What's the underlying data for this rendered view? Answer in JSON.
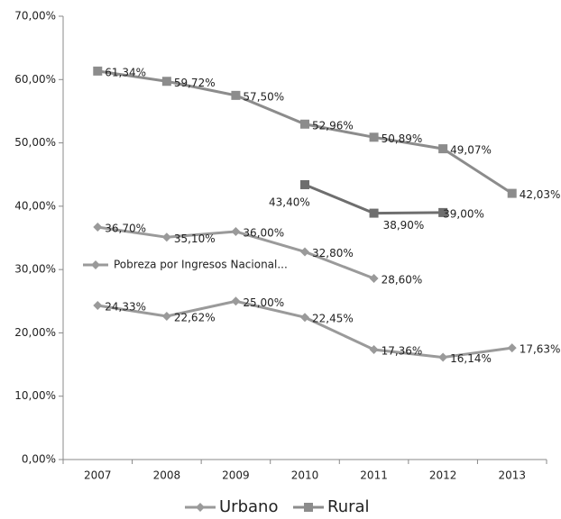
{
  "chart_data": {
    "type": "line",
    "categories": [
      "2007",
      "2008",
      "2009",
      "2010",
      "2011",
      "2012",
      "2013"
    ],
    "ylim": [
      0,
      70
    ],
    "yticks": [
      {
        "value": 0,
        "label": "0,00%"
      },
      {
        "value": 10,
        "label": "10,00%"
      },
      {
        "value": 20,
        "label": "20,00%"
      },
      {
        "value": 30,
        "label": "30,00%"
      },
      {
        "value": 40,
        "label": "40,00%"
      },
      {
        "value": 50,
        "label": "50,00%"
      },
      {
        "value": 60,
        "label": "60,00%"
      },
      {
        "value": 70,
        "label": "70,00%"
      }
    ],
    "series": [
      {
        "name": "Rural",
        "color": "#8c8c8c",
        "marker": "square",
        "values": [
          61.34,
          59.72,
          57.5,
          52.96,
          50.89,
          49.07,
          42.03
        ],
        "value_labels": [
          "61,34%",
          "59,72%",
          "57,50%",
          "52,96%",
          "50,89%",
          "49,07%",
          "42,03%"
        ]
      },
      {
        "color": "#6e6e6e",
        "marker": "square",
        "values": [
          null,
          null,
          null,
          43.4,
          38.9,
          39.0,
          null
        ],
        "value_labels": [
          null,
          null,
          null,
          "43,40%",
          "38,90%",
          "39,00%",
          null
        ]
      },
      {
        "name": "Pobreza por Ingresos Nacional...",
        "color": "#9a9a9a",
        "marker": "diamond",
        "values": [
          36.7,
          35.1,
          36.0,
          32.8,
          28.6,
          null,
          null
        ],
        "value_labels": [
          "36,70%",
          "35,10%",
          "36,00%",
          "32,80%",
          "28,60%",
          null,
          null
        ]
      },
      {
        "name": "Urbano",
        "color": "#9a9a9a",
        "marker": "diamond",
        "values": [
          24.33,
          22.62,
          25.0,
          22.45,
          17.36,
          16.14,
          17.63
        ],
        "value_labels": [
          "24,33%",
          "22,62%",
          "25,00%",
          "22,45%",
          "17,36%",
          "16,14%",
          "17,63%"
        ]
      }
    ]
  }
}
